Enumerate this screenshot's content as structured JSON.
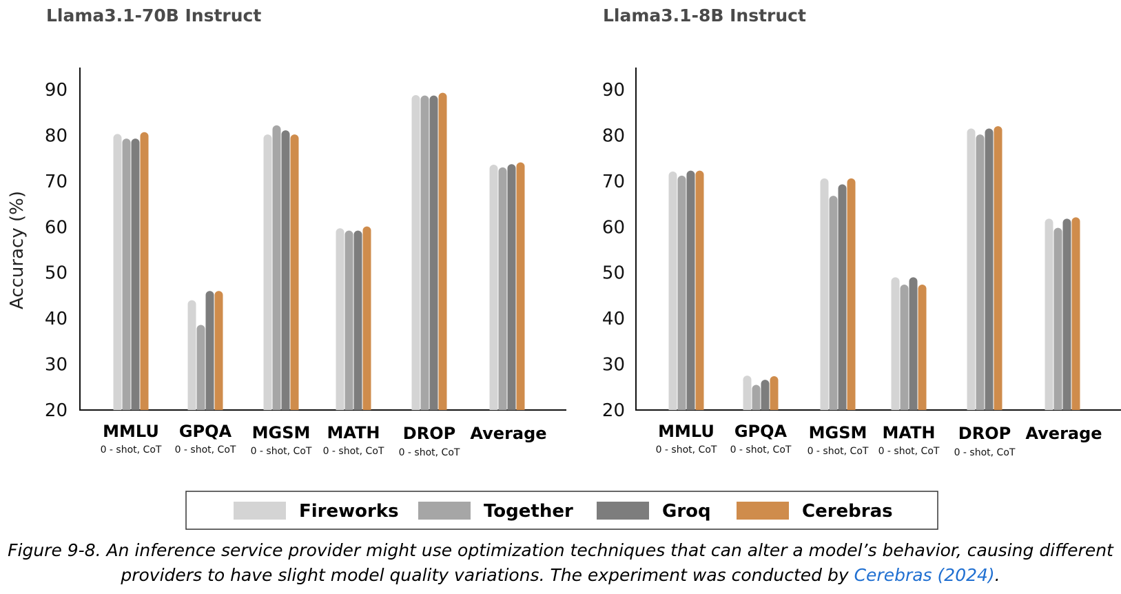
{
  "colors": {
    "Fireworks": "#d4d4d4",
    "Together": "#a6a6a6",
    "Groq": "#7d7d7d",
    "Cerebras": "#cf8c4c"
  },
  "y_axis_label": "Accuracy (%)",
  "chart_data": [
    {
      "type": "bar",
      "title": "Llama3.1-70B Instruct",
      "ylabel": "Accuracy (%)",
      "ylim": [
        20,
        90
      ],
      "yticks": [
        20,
        30,
        40,
        50,
        60,
        70,
        80,
        90
      ],
      "grid": false,
      "categories": [
        "MMLU",
        "GPQA",
        "MGSM",
        "MATH",
        "DROP",
        "Average"
      ],
      "category_subtitles": [
        "0 - shot, CoT",
        "0 - shot, CoT",
        "0 - shot, CoT",
        "0 - shot, CoT",
        "0 - shot, CoT",
        ""
      ],
      "series": [
        {
          "name": "Fireworks",
          "values": [
            80.3,
            44.0,
            80.2,
            59.7,
            88.8,
            73.6
          ]
        },
        {
          "name": "Together",
          "values": [
            79.3,
            38.6,
            82.2,
            59.2,
            88.7,
            73.0
          ]
        },
        {
          "name": "Groq",
          "values": [
            79.3,
            46.0,
            81.1,
            59.2,
            88.7,
            73.7
          ]
        },
        {
          "name": "Cerebras",
          "values": [
            80.7,
            46.0,
            80.2,
            60.1,
            89.3,
            74.1
          ]
        }
      ]
    },
    {
      "type": "bar",
      "title": "Llama3.1-8B Instruct",
      "ylabel": "",
      "ylim": [
        20,
        90
      ],
      "yticks": [
        20,
        30,
        40,
        50,
        60,
        70,
        80,
        90
      ],
      "grid": false,
      "categories": [
        "MMLU",
        "GPQA",
        "MGSM",
        "MATH",
        "DROP",
        "Average"
      ],
      "category_subtitles": [
        "0 - shot, CoT",
        "0 - shot, CoT",
        "0 - shot, CoT",
        "0 - shot, CoT",
        "0 - shot, CoT",
        ""
      ],
      "series": [
        {
          "name": "Fireworks",
          "values": [
            72.1,
            27.5,
            70.6,
            49.0,
            81.5,
            61.8
          ]
        },
        {
          "name": "Together",
          "values": [
            71.2,
            25.5,
            66.8,
            47.4,
            80.2,
            59.8
          ]
        },
        {
          "name": "Groq",
          "values": [
            72.3,
            26.6,
            69.3,
            49.0,
            81.5,
            61.8
          ]
        },
        {
          "name": "Cerebras",
          "values": [
            72.3,
            27.4,
            70.6,
            47.4,
            82.0,
            62.1
          ]
        }
      ]
    }
  ],
  "legend": [
    "Fireworks",
    "Together",
    "Groq",
    "Cerebras"
  ],
  "caption": {
    "text": "Figure 9-8. An inference service provider might use optimization techniques that can alter a model’s behavior, causing different providers to have slight model quality variations. The experiment was conducted by ",
    "link": "Cerebras (2024)",
    "end": "."
  }
}
